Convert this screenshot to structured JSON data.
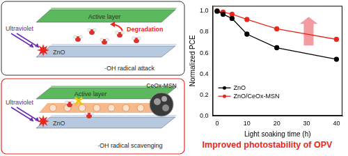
{
  "diagram": {
    "panels": [
      {
        "uv_label": "Ultraviolet",
        "active_layer": "Active layer",
        "zno": "ZnO",
        "effect": "Degradation",
        "caption": "·OH radical attack"
      },
      {
        "uv_label": "Ultraviolet",
        "active_layer": "Active layer",
        "zno": "ZnO",
        "particle_label": "CeOx-MSN",
        "caption": "·OH radical scavenging"
      }
    ]
  },
  "chart_data": {
    "type": "line",
    "xlabel": "Light soaking time (h)",
    "ylabel": "Normalized PCE",
    "xlim": [
      -1.5,
      42
    ],
    "xticks": [
      0,
      10,
      20,
      30,
      40
    ],
    "ylim": [
      0,
      1.05
    ],
    "yticks": [
      {
        "value": 0,
        "label": "0.0"
      },
      0.2,
      0.4,
      0.6,
      0.8,
      {
        "value": 1,
        "label": "1.0"
      }
    ],
    "grid": false,
    "legend": "lower left",
    "series": [
      {
        "name": "ZnO",
        "color": "#000000",
        "marker": "circle",
        "line_style": "solid",
        "x": [
          0,
          2,
          5,
          10,
          20,
          40
        ],
        "values": [
          1.0,
          0.97,
          0.93,
          0.78,
          0.65,
          0.54
        ]
      },
      {
        "name": "ZnO/CeOx-MSN",
        "color": "#e8281e",
        "marker": "circle",
        "line_style": "solid",
        "x": [
          0,
          2,
          5,
          10,
          20,
          40
        ],
        "values": [
          1.0,
          0.99,
          0.97,
          0.92,
          0.83,
          0.73
        ]
      }
    ]
  },
  "footer": "Improved photostability of OPV"
}
